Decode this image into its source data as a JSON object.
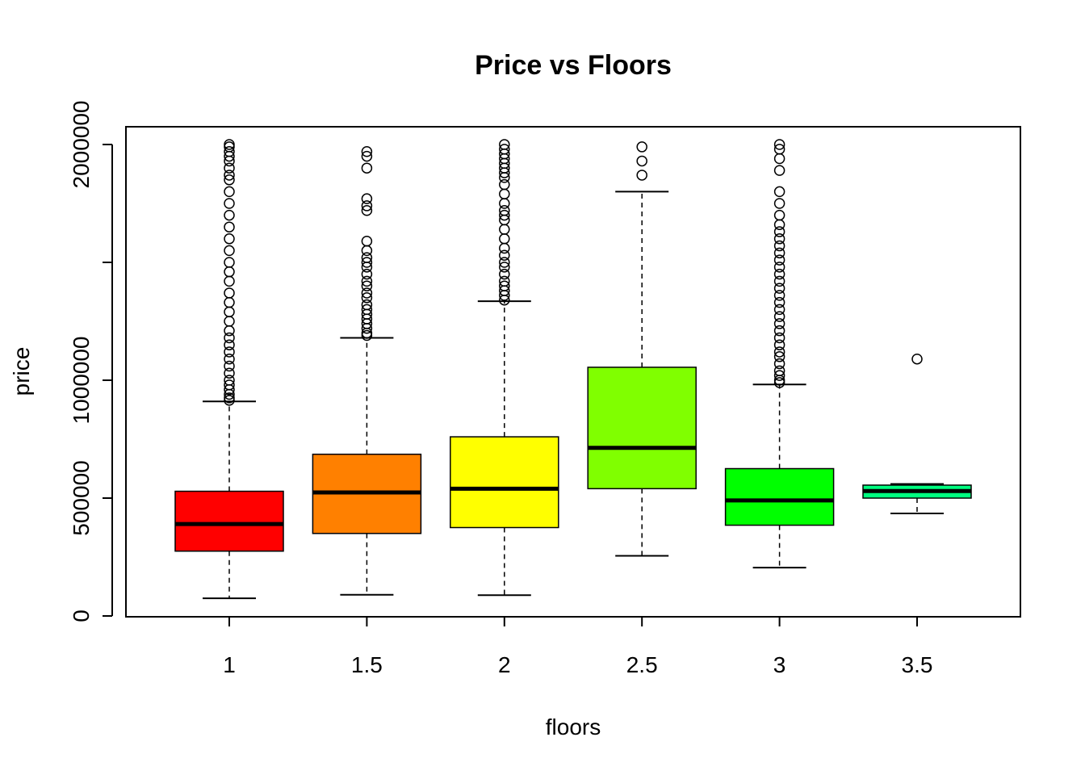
{
  "chart_data": {
    "type": "box",
    "title": "Price vs Floors",
    "xlabel": "floors",
    "ylabel": "price",
    "categories": [
      "1",
      "1.5",
      "2",
      "2.5",
      "3",
      "3.5"
    ],
    "ylim": [
      0,
      2000000
    ],
    "yticks": [
      "0",
      "500000",
      "1000000",
      "2000000"
    ],
    "yticks_unlabeled": [
      1500000
    ],
    "grid": false,
    "legend": "none",
    "colors": [
      "#FF0000",
      "#FF8000",
      "#FFFF00",
      "#80FF00",
      "#00FF00",
      "#00FF80"
    ],
    "boxes": [
      {
        "whisker_low": 75000,
        "q1": 275000,
        "median": 390000,
        "q3": 529000,
        "whisker_high": 910000,
        "outliers": [
          915000,
          925000,
          940000,
          960000,
          980000,
          1000000,
          1030000,
          1060000,
          1090000,
          1120000,
          1150000,
          1180000,
          1210000,
          1250000,
          1290000,
          1330000,
          1370000,
          1420000,
          1460000,
          1500000,
          1550000,
          1600000,
          1650000,
          1700000,
          1750000,
          1800000,
          1850000,
          1870000,
          1900000,
          1930000,
          1950000,
          1970000,
          1990000,
          2000000
        ]
      },
      {
        "whisker_low": 90000,
        "q1": 350000,
        "median": 524000,
        "q3": 686000,
        "whisker_high": 1180000,
        "outliers": [
          1190000,
          1200000,
          1220000,
          1240000,
          1260000,
          1280000,
          1300000,
          1320000,
          1350000,
          1370000,
          1400000,
          1420000,
          1450000,
          1480000,
          1500000,
          1520000,
          1550000,
          1590000,
          1720000,
          1740000,
          1770000,
          1900000,
          1950000,
          1970000
        ]
      },
      {
        "whisker_low": 88000,
        "q1": 375000,
        "median": 540000,
        "q3": 760000,
        "whisker_high": 1335000,
        "outliers": [
          1340000,
          1360000,
          1380000,
          1400000,
          1420000,
          1450000,
          1480000,
          1500000,
          1530000,
          1560000,
          1600000,
          1640000,
          1680000,
          1700000,
          1720000,
          1750000,
          1790000,
          1830000,
          1860000,
          1880000,
          1900000,
          1920000,
          1940000,
          1960000,
          1980000,
          2000000
        ]
      },
      {
        "whisker_low": 255000,
        "q1": 540000,
        "median": 713000,
        "q3": 1055000,
        "whisker_high": 1800000,
        "outliers": [
          1870000,
          1930000,
          1990000
        ]
      },
      {
        "whisker_low": 205000,
        "q1": 385000,
        "median": 490000,
        "q3": 625000,
        "whisker_high": 982000,
        "outliers": [
          990000,
          1000000,
          1020000,
          1040000,
          1070000,
          1100000,
          1120000,
          1150000,
          1180000,
          1210000,
          1240000,
          1270000,
          1300000,
          1330000,
          1360000,
          1390000,
          1420000,
          1450000,
          1480000,
          1510000,
          1540000,
          1570000,
          1600000,
          1630000,
          1660000,
          1700000,
          1750000,
          1800000,
          1890000,
          1940000,
          1980000,
          2000000
        ]
      },
      {
        "whisker_low": 435000,
        "q1": 500000,
        "median": 530000,
        "q3": 555000,
        "whisker_high": 560000,
        "outliers": [
          1090000
        ]
      }
    ]
  }
}
